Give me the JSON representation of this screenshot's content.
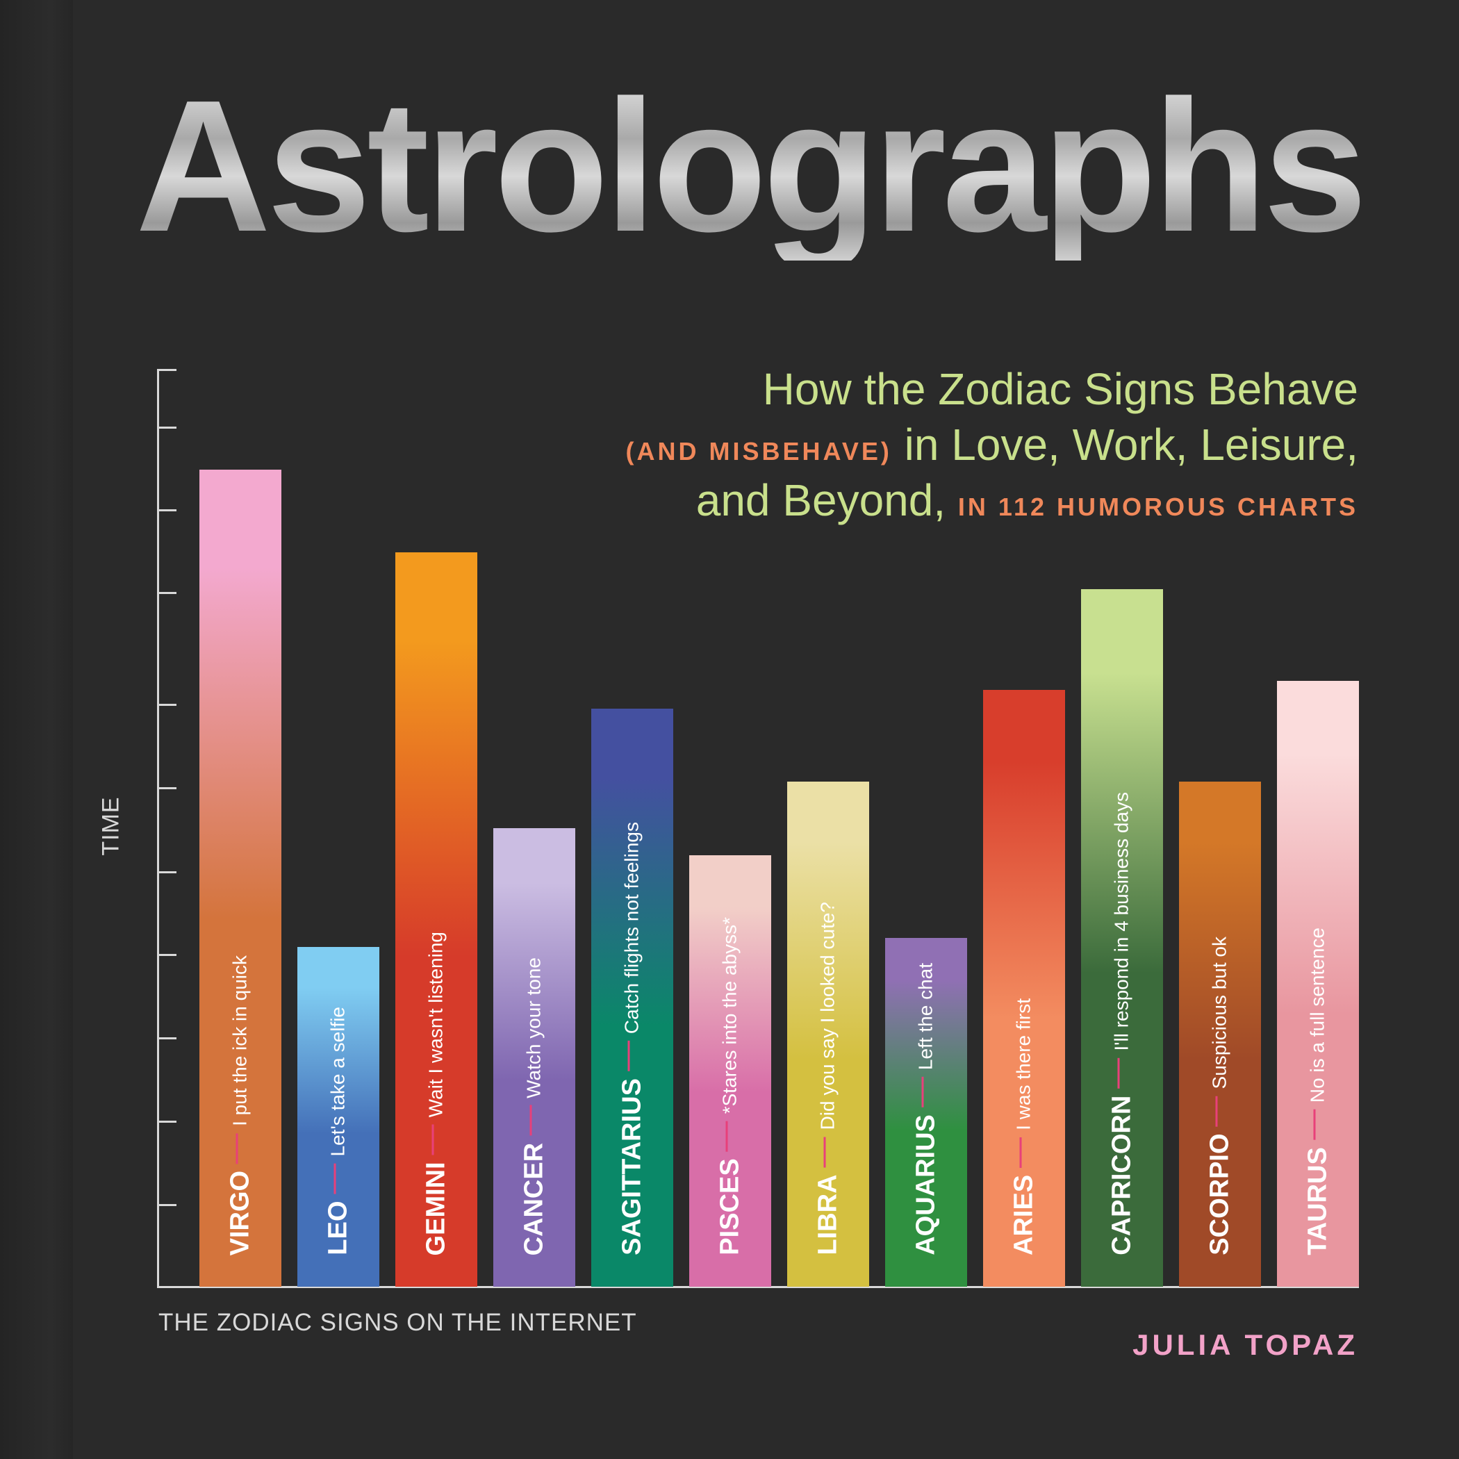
{
  "cover": {
    "title": "Astrolographs",
    "subtitle_line1": "How the Zodiac Signs Behave",
    "subtitle_line2_caps": "(AND MISBEHAVE)",
    "subtitle_line2": " in Love, Work, Leisure,",
    "subtitle_line3": "and Beyond, ",
    "subtitle_line3_caps": "IN 112 HUMOROUS CHARTS",
    "author": "JULIA TOPAZ"
  },
  "colors": {
    "background": "#2a2a2a",
    "subtitle": "#c9e08c",
    "accent_orange": "#f0885a",
    "author_pink": "#f2a2c8",
    "divider": "#e8407a"
  },
  "chart_data": {
    "type": "bar",
    "title": "",
    "xlabel": "THE ZODIAC SIGNS ON THE INTERNET",
    "ylabel": "TIME",
    "ylim": [
      0,
      1
    ],
    "grid": false,
    "categories": [
      "VIRGO",
      "LEO",
      "GEMINI",
      "CANCER",
      "SAGITTARIUS",
      "PISCES",
      "LIBRA",
      "AQUARIUS",
      "ARIES",
      "CAPRICORN",
      "SCORPIO",
      "TAURUS"
    ],
    "values": [
      0.89,
      0.37,
      0.8,
      0.5,
      0.63,
      0.47,
      0.55,
      0.38,
      0.65,
      0.76,
      0.55,
      0.66
    ],
    "annotations": [
      "I put the ick in quick",
      "Let's take a selfie",
      "Wait I wasn't listening",
      "Watch your tone",
      "Catch flights not feelings",
      "*Stares into the abyss*",
      "Did you say I looked cute?",
      "Left the chat",
      "I was there first",
      "I'll respond in 4 business days",
      "Suspicious but ok",
      "No is a full sentence"
    ],
    "bar_colors": [
      [
        "#f3a9cf",
        "#d4743c"
      ],
      [
        "#80cdf2",
        "#4470b8"
      ],
      [
        "#f39a1e",
        "#d63b2a"
      ],
      [
        "#cbbde2",
        "#7f66b0"
      ],
      [
        "#4450a0",
        "#0a8868"
      ],
      [
        "#f2cfc8",
        "#d86ea8"
      ],
      [
        "#ebe0a6",
        "#d4c040"
      ],
      [
        "#9070b4",
        "#2f9040"
      ],
      [
        "#d83e2c",
        "#f38c60"
      ],
      [
        "#c8e090",
        "#3b6b3b"
      ],
      [
        "#d47828",
        "#a04a28"
      ],
      [
        "#fbdcdc",
        "#e8969f"
      ]
    ]
  }
}
